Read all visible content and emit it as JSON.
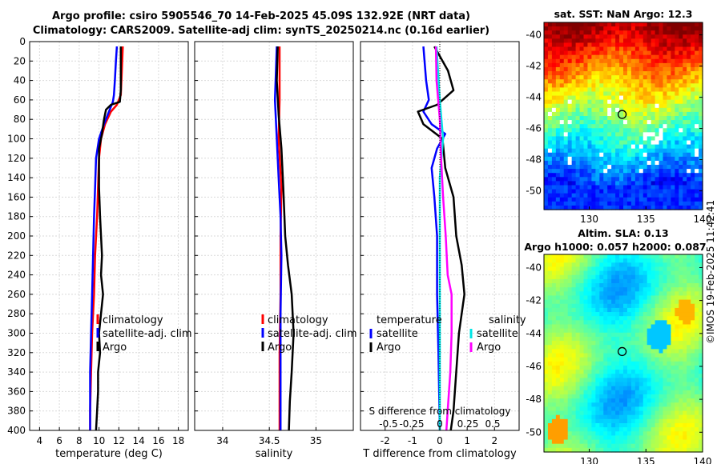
{
  "title": {
    "line1": "Argo profile: csiro 5905546_70 14-Feb-2025 45.09S 132.92E (NRT data)",
    "line2": "Climatology: CARS2009. Satellite-adj clim: synTS_20250214.nc (0.16d earlier)"
  },
  "colors": {
    "argo": "#000000",
    "climatology": "#ff0000",
    "satellite": "#0000ff",
    "sat_salinity": "#00e5e5",
    "argo_salinity": "#ff00ff"
  },
  "chart_data": [
    {
      "type": "line",
      "name": "temperature",
      "xlabel": "temperature (deg C)",
      "ylabel": "",
      "xlim": [
        3,
        19
      ],
      "ylim": [
        0,
        400
      ],
      "xticks": [
        "4",
        "6",
        "8",
        "10",
        "12",
        "14",
        "16",
        "18"
      ],
      "yticks": [
        "0",
        "20",
        "40",
        "60",
        "80",
        "100",
        "120",
        "140",
        "160",
        "180",
        "200",
        "220",
        "240",
        "260",
        "280",
        "300",
        "320",
        "340",
        "360",
        "380",
        "400"
      ],
      "legend": [
        "climatology",
        "satellite-adj. clim",
        "Argo"
      ],
      "series": [
        {
          "name": "climatology",
          "color": "#ff0000",
          "points": [
            [
              12.4,
              5
            ],
            [
              12.3,
              30
            ],
            [
              12.2,
              55
            ],
            [
              11.8,
              65
            ],
            [
              11.2,
              72
            ],
            [
              10.6,
              85
            ],
            [
              10.2,
              100
            ],
            [
              10.0,
              120
            ],
            [
              9.9,
              150
            ],
            [
              9.8,
              180
            ],
            [
              9.6,
              220
            ],
            [
              9.5,
              260
            ],
            [
              9.3,
              300
            ],
            [
              9.2,
              340
            ],
            [
              9.1,
              380
            ],
            [
              9.1,
              400
            ]
          ]
        },
        {
          "name": "satellite-adj. clim",
          "color": "#0000ff",
          "points": [
            [
              11.8,
              5
            ],
            [
              11.7,
              20
            ],
            [
              11.6,
              40
            ],
            [
              11.5,
              55
            ],
            [
              11.4,
              62
            ],
            [
              11.0,
              72
            ],
            [
              10.5,
              85
            ],
            [
              10.0,
              100
            ],
            [
              9.7,
              120
            ],
            [
              9.6,
              150
            ],
            [
              9.5,
              180
            ],
            [
              9.4,
              220
            ],
            [
              9.3,
              260
            ],
            [
              9.2,
              300
            ],
            [
              9.1,
              340
            ],
            [
              9.1,
              380
            ],
            [
              9.1,
              400
            ]
          ]
        },
        {
          "name": "Argo",
          "color": "#000000",
          "points": [
            [
              12.2,
              5
            ],
            [
              12.2,
              50
            ],
            [
              12.1,
              62
            ],
            [
              11.2,
              65
            ],
            [
              10.7,
              70
            ],
            [
              10.5,
              80
            ],
            [
              10.3,
              95
            ],
            [
              10.0,
              110
            ],
            [
              10.0,
              150
            ],
            [
              10.1,
              180
            ],
            [
              10.2,
              200
            ],
            [
              10.3,
              220
            ],
            [
              10.2,
              240
            ],
            [
              10.4,
              260
            ],
            [
              10.2,
              280
            ],
            [
              10.0,
              300
            ],
            [
              10.1,
              320
            ],
            [
              9.9,
              340
            ],
            [
              9.9,
              360
            ],
            [
              9.8,
              380
            ],
            [
              9.7,
              400
            ]
          ]
        }
      ]
    },
    {
      "type": "line",
      "name": "salinity",
      "xlabel": "salinity",
      "xlim": [
        33.7,
        35.4
      ],
      "ylim": [
        0,
        400
      ],
      "xticks": [
        "34",
        "34.5",
        "35"
      ],
      "legend": [
        "climatology",
        "satellite-adj. clim",
        "Argo"
      ],
      "series": [
        {
          "name": "climatology",
          "color": "#ff0000",
          "points": [
            [
              34.61,
              5
            ],
            [
              34.61,
              60
            ],
            [
              34.6,
              100
            ],
            [
              34.63,
              150
            ],
            [
              34.62,
              200
            ],
            [
              34.62,
              260
            ],
            [
              34.61,
              320
            ],
            [
              34.61,
              400
            ]
          ]
        },
        {
          "name": "satellite-adj. clim",
          "color": "#0000ff",
          "points": [
            [
              34.58,
              5
            ],
            [
              34.56,
              60
            ],
            [
              34.58,
              100
            ],
            [
              34.6,
              140
            ],
            [
              34.62,
              180
            ],
            [
              34.63,
              220
            ],
            [
              34.62,
              280
            ],
            [
              34.62,
              340
            ],
            [
              34.62,
              400
            ]
          ]
        },
        {
          "name": "Argo",
          "color": "#000000",
          "points": [
            [
              34.59,
              5
            ],
            [
              34.58,
              40
            ],
            [
              34.6,
              75
            ],
            [
              34.63,
              110
            ],
            [
              34.65,
              150
            ],
            [
              34.67,
              200
            ],
            [
              34.7,
              230
            ],
            [
              34.74,
              260
            ],
            [
              34.76,
              300
            ],
            [
              34.74,
              340
            ],
            [
              34.72,
              370
            ],
            [
              34.71,
              400
            ]
          ]
        }
      ]
    },
    {
      "type": "line",
      "name": "difference",
      "xlabel": "T difference from climatology",
      "xlim": [
        -2.9,
        2.9
      ],
      "ylim": [
        0,
        400
      ],
      "xticks": [
        "-2",
        "-1",
        "0",
        "1",
        "2"
      ],
      "secondary_axis_label": "S difference from climatology",
      "secondary_xticks": [
        "-0.5",
        "-0.25",
        "0",
        "0.25",
        "0.5"
      ],
      "legend_temperature": [
        "temperature",
        "satellite",
        "Argo"
      ],
      "legend_salinity": [
        "salinity",
        "satellite",
        "Argo"
      ],
      "series": [
        {
          "name": "T satellite",
          "color": "#0000ff",
          "points": [
            [
              -0.6,
              5
            ],
            [
              -0.5,
              40
            ],
            [
              -0.4,
              60
            ],
            [
              -0.6,
              72
            ],
            [
              -0.3,
              85
            ],
            [
              0.2,
              95
            ],
            [
              -0.1,
              110
            ],
            [
              -0.3,
              130
            ],
            [
              -0.2,
              160
            ],
            [
              -0.1,
              200
            ],
            [
              -0.1,
              260
            ],
            [
              -0.05,
              320
            ],
            [
              0.0,
              400
            ]
          ]
        },
        {
          "name": "T Argo",
          "color": "#000000",
          "points": [
            [
              -0.2,
              5
            ],
            [
              0.3,
              30
            ],
            [
              0.5,
              50
            ],
            [
              -0.1,
              65
            ],
            [
              -0.8,
              72
            ],
            [
              -0.6,
              85
            ],
            [
              0.1,
              100
            ],
            [
              0.2,
              130
            ],
            [
              0.5,
              160
            ],
            [
              0.6,
              200
            ],
            [
              0.8,
              230
            ],
            [
              0.9,
              260
            ],
            [
              0.7,
              300
            ],
            [
              0.6,
              340
            ],
            [
              0.5,
              380
            ],
            [
              0.4,
              400
            ]
          ]
        },
        {
          "name": "S satellite",
          "color": "#00e5e5",
          "points": [
            [
              -0.05,
              5
            ],
            [
              0.0,
              60
            ],
            [
              0.05,
              100
            ],
            [
              0.0,
              140
            ],
            [
              0.0,
              200
            ],
            [
              0.0,
              300
            ],
            [
              0.0,
              400
            ]
          ]
        },
        {
          "name": "S Argo",
          "color": "#ff00ff",
          "points": [
            [
              -0.06,
              5
            ],
            [
              -0.05,
              40
            ],
            [
              0.0,
              80
            ],
            [
              0.02,
              120
            ],
            [
              0.05,
              160
            ],
            [
              0.09,
              200
            ],
            [
              0.12,
              240
            ],
            [
              0.18,
              260
            ],
            [
              0.18,
              300
            ],
            [
              0.16,
              340
            ],
            [
              0.12,
              380
            ],
            [
              0.1,
              400
            ]
          ]
        }
      ]
    },
    {
      "type": "heatmap",
      "name": "sat_sst",
      "title": "sat. SST: NaN Argo: 12.3",
      "xticks": [
        "130",
        "135",
        "140"
      ],
      "yticks": [
        "-40",
        "-42",
        "-44",
        "-46",
        "-48",
        "-50"
      ],
      "xlim": [
        126,
        140
      ],
      "ylim": [
        -51.2,
        -39.2
      ],
      "marker": [
        132.9,
        -45.1
      ]
    },
    {
      "type": "heatmap",
      "name": "altimetry",
      "title_line1": "Altim. SLA: 0.13",
      "title_line2": "Argo h1000: 0.057 h2000: 0.087",
      "xticks": [
        "130",
        "135",
        "140"
      ],
      "yticks": [
        "-40",
        "-42",
        "-44",
        "-46",
        "-48",
        "-50"
      ],
      "xlim": [
        126,
        140
      ],
      "ylim": [
        -51.2,
        -39.2
      ],
      "marker": [
        132.9,
        -45.1
      ]
    }
  ],
  "stamp": "©IMOS 19-Feb-2025 11:42:41"
}
